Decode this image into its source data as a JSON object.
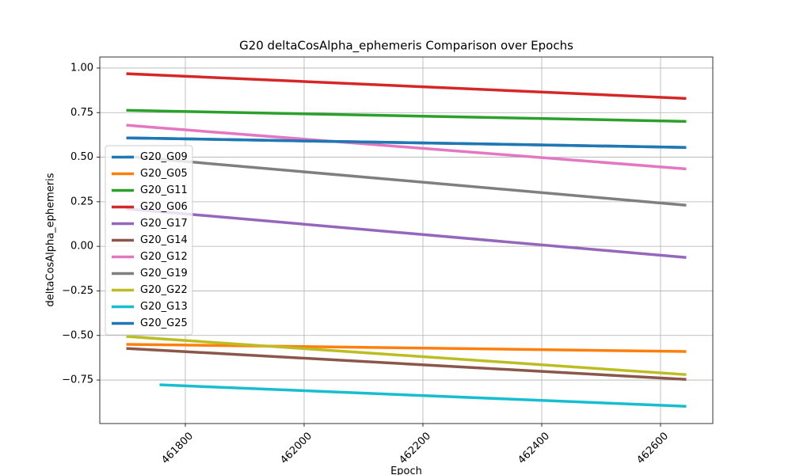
{
  "chart_data": {
    "type": "line",
    "title": "G20 deltaCosAlpha_ephemeris Comparison over Epochs",
    "x_label": "Epoch",
    "y_label": "deltaCosAlpha_ephemeris",
    "x": [
      461703,
      461759,
      462641
    ],
    "xlim": [
      461656,
      462688
    ],
    "xticks": [
      461800,
      462000,
      462200,
      462400,
      462600
    ],
    "ylim": [
      -0.994,
      1.062
    ],
    "yticks": [
      {
        "value": -0.75,
        "label": "−0.75"
      },
      {
        "value": -0.5,
        "label": "−0.50"
      },
      {
        "value": -0.25,
        "label": "−0.25"
      },
      {
        "value": 0,
        "label": "0.00"
      },
      {
        "value": 0.25,
        "label": "0.25"
      },
      {
        "value": 0.5,
        "label": "0.50"
      },
      {
        "value": 0.75,
        "label": "0.75"
      },
      {
        "value": 1,
        "label": "1.00"
      }
    ],
    "grid": true,
    "legend": "center left",
    "series": [
      {
        "name": "G20_G09",
        "color": "#1f77b4",
        "values": [
          0.608,
          0.605,
          0.555
        ]
      },
      {
        "name": "G20_G05",
        "color": "#ff7f0e",
        "values": [
          -0.55,
          -0.552,
          -0.59
        ]
      },
      {
        "name": "G20_G11",
        "color": "#2ca02c",
        "values": [
          0.763,
          0.759,
          0.701
        ]
      },
      {
        "name": "G20_G06",
        "color": "#d62728",
        "values": [
          0.968,
          0.96,
          0.83
        ]
      },
      {
        "name": "G20_G17",
        "color": "#9467bd",
        "values": [
          0.21,
          0.194,
          -0.062
        ]
      },
      {
        "name": "G20_G14",
        "color": "#8c564b",
        "values": [
          -0.573,
          -0.583,
          -0.746
        ]
      },
      {
        "name": "G20_G12",
        "color": "#e377c2",
        "values": [
          0.679,
          0.664,
          0.435
        ]
      },
      {
        "name": "G20_G19",
        "color": "#7f7f7f",
        "values": [
          0.504,
          0.488,
          0.231
        ]
      },
      {
        "name": "G20_G22",
        "color": "#bcbd22",
        "values": [
          -0.506,
          -0.519,
          -0.719
        ]
      },
      {
        "name": "G20_G13",
        "color": "#17becf",
        "values": [
          null,
          -0.777,
          -0.897
        ]
      },
      {
        "name": "G20_G25",
        "color": "#1f77b4",
        "values": [
          0.608,
          0.605,
          0.555
        ]
      }
    ]
  }
}
